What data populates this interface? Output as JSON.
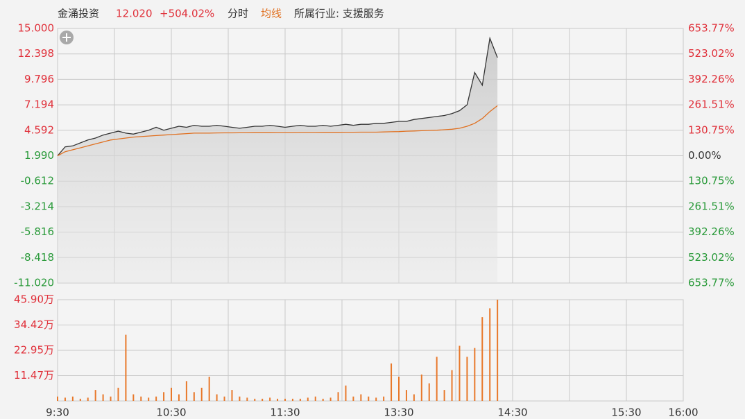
{
  "header": {
    "name": "金涌投资",
    "price": "12.020",
    "change": "+504.02%",
    "industry": "所属行业: 支援服务"
  },
  "chart_data": [
    {
      "type": "line",
      "x": [
        0,
        4,
        8,
        12,
        16,
        20,
        24,
        28,
        32,
        36,
        40,
        44,
        48,
        52,
        56,
        60,
        64,
        68,
        72,
        76,
        80,
        84,
        88,
        92,
        96,
        100,
        104,
        108,
        112,
        116,
        120,
        124,
        128,
        132,
        136,
        140,
        144,
        148,
        152,
        156,
        160,
        164,
        168,
        172,
        176,
        180,
        184,
        188,
        192,
        196,
        200,
        204,
        208,
        212,
        216,
        220,
        224,
        228,
        232
      ],
      "series": [
        {
          "name": "分时",
          "color": "#333333",
          "values": [
            1.99,
            2.9,
            3.0,
            3.3,
            3.6,
            3.8,
            4.1,
            4.3,
            4.5,
            4.3,
            4.2,
            4.4,
            4.6,
            4.9,
            4.6,
            4.8,
            5.0,
            4.9,
            5.1,
            5.0,
            5.0,
            5.1,
            5.0,
            4.9,
            4.8,
            4.9,
            5.0,
            5.0,
            5.1,
            5.0,
            4.9,
            5.0,
            5.1,
            5.0,
            5.0,
            5.1,
            5.0,
            5.1,
            5.2,
            5.1,
            5.2,
            5.2,
            5.3,
            5.3,
            5.4,
            5.5,
            5.5,
            5.7,
            5.8,
            5.9,
            6.0,
            6.1,
            6.3,
            6.6,
            7.2,
            10.5,
            9.2,
            14.0,
            12.02
          ]
        },
        {
          "name": "均线",
          "color": "#e07020",
          "values": [
            1.99,
            2.4,
            2.6,
            2.8,
            3.0,
            3.2,
            3.4,
            3.6,
            3.7,
            3.8,
            3.9,
            3.95,
            4.0,
            4.05,
            4.1,
            4.15,
            4.2,
            4.25,
            4.3,
            4.3,
            4.3,
            4.32,
            4.33,
            4.33,
            4.34,
            4.34,
            4.35,
            4.35,
            4.35,
            4.36,
            4.36,
            4.36,
            4.37,
            4.37,
            4.37,
            4.38,
            4.38,
            4.38,
            4.39,
            4.39,
            4.4,
            4.4,
            4.4,
            4.42,
            4.44,
            4.46,
            4.5,
            4.52,
            4.55,
            4.58,
            4.6,
            4.65,
            4.7,
            4.8,
            5.0,
            5.3,
            5.8,
            6.5,
            7.1
          ]
        }
      ],
      "xlim": [
        0,
        330
      ],
      "xticks": [
        {
          "value": 0,
          "label": "9:30"
        },
        {
          "value": 30,
          "label": null
        },
        {
          "value": 60,
          "label": "10:30"
        },
        {
          "value": 90,
          "label": null
        },
        {
          "value": 120,
          "label": "11:30"
        },
        {
          "value": 150,
          "label": null
        },
        {
          "value": 180,
          "label": "13:30"
        },
        {
          "value": 210,
          "label": null
        },
        {
          "value": 240,
          "label": "14:30"
        },
        {
          "value": 270,
          "label": null
        },
        {
          "value": 300,
          "label": "15:30"
        },
        {
          "value": 330,
          "label": "16:00"
        }
      ],
      "ylim": [
        -11.02,
        15.0
      ],
      "yticks": [
        {
          "value": 15.0,
          "label": "15.000"
        },
        {
          "value": 12.398,
          "label": "12.398"
        },
        {
          "value": 9.796,
          "label": "9.796"
        },
        {
          "value": 7.194,
          "label": "7.194"
        },
        {
          "value": 4.592,
          "label": "4.592"
        },
        {
          "value": 1.99,
          "label": "1.990"
        },
        {
          "value": -0.612,
          "label": "-0.612"
        },
        {
          "value": -3.214,
          "label": "-3.214"
        },
        {
          "value": -5.816,
          "label": "-5.816"
        },
        {
          "value": -8.418,
          "label": "-8.418"
        },
        {
          "value": -11.02,
          "label": "-11.020"
        }
      ],
      "y2lim": [
        -653.77,
        653.77
      ],
      "y2ticks": [
        {
          "value": 653.77,
          "label": "653.77%"
        },
        {
          "value": 523.02,
          "label": "523.02%"
        },
        {
          "value": 392.26,
          "label": "392.26%"
        },
        {
          "value": 261.51,
          "label": "261.51%"
        },
        {
          "value": 130.75,
          "label": "130.75%"
        },
        {
          "value": 0,
          "label": "0.00%"
        },
        {
          "value": -130.75,
          "label": "130.75%"
        },
        {
          "value": -261.51,
          "label": "261.51%"
        },
        {
          "value": -392.26,
          "label": "392.26%"
        },
        {
          "value": -523.02,
          "label": "523.02%"
        },
        {
          "value": -653.77,
          "label": "653.77%"
        }
      ],
      "up_color": "#e0303a",
      "down_color": "#2a9a3a",
      "flat_color": "#333333",
      "grid": true
    },
    {
      "type": "bar",
      "x": [
        0,
        4,
        8,
        12,
        16,
        20,
        24,
        28,
        32,
        36,
        40,
        44,
        48,
        52,
        56,
        60,
        64,
        68,
        72,
        76,
        80,
        84,
        88,
        92,
        96,
        100,
        104,
        108,
        112,
        116,
        120,
        124,
        128,
        132,
        136,
        140,
        144,
        148,
        152,
        156,
        160,
        164,
        168,
        172,
        176,
        180,
        184,
        188,
        192,
        196,
        200,
        204,
        208,
        212,
        216,
        220,
        224,
        228,
        232
      ],
      "values": [
        2,
        1.5,
        2,
        1,
        1.5,
        5,
        3,
        2,
        6,
        30,
        3,
        2,
        1.5,
        2,
        4,
        6,
        3,
        9,
        4,
        6,
        11,
        3,
        2,
        5,
        2,
        1.5,
        1,
        1,
        1.5,
        1,
        1,
        1,
        1,
        1.5,
        2,
        1,
        1.5,
        4,
        7,
        2,
        3,
        2,
        1.5,
        2,
        17,
        11,
        5,
        3,
        12,
        8,
        20,
        5,
        14,
        25,
        20,
        24,
        38,
        42,
        45.9
      ],
      "color": "#e8782a",
      "xlim": [
        0,
        330
      ],
      "ylim": [
        0,
        45.9
      ],
      "yticks": [
        {
          "value": 45.9,
          "label": "45.90万"
        },
        {
          "value": 34.42,
          "label": "34.42万"
        },
        {
          "value": 22.95,
          "label": "22.95万"
        },
        {
          "value": 11.47,
          "label": "11.47万"
        }
      ],
      "label_color": "#e0303a",
      "grid": true
    }
  ]
}
